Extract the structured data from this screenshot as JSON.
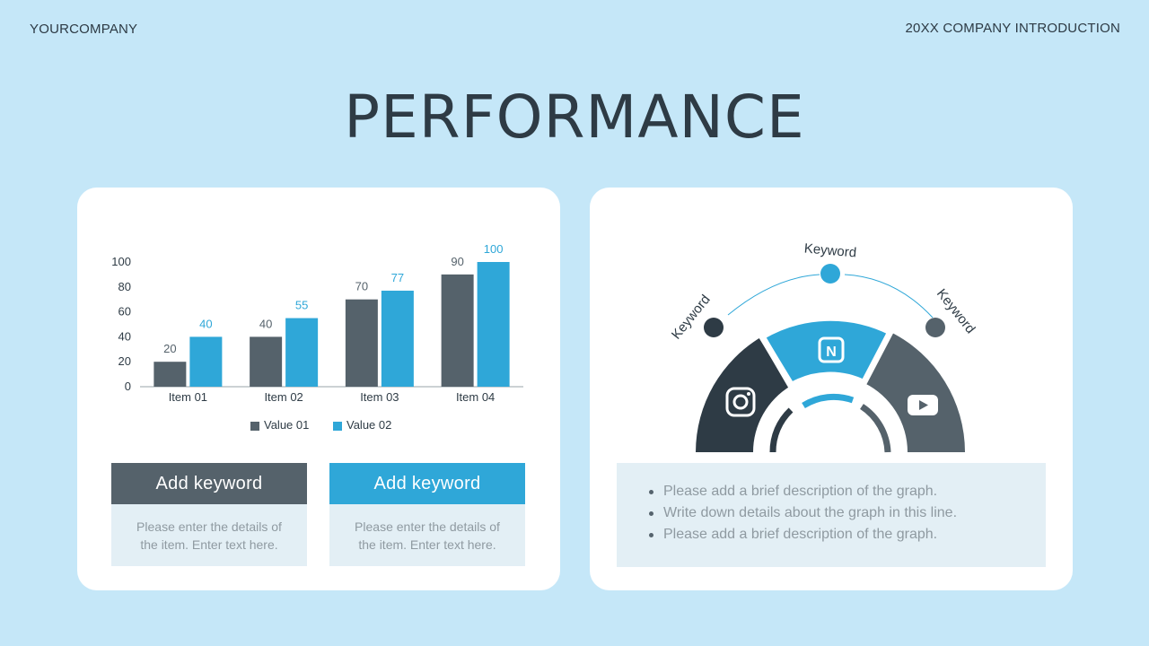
{
  "header": {
    "company": "YOURCOMPANY",
    "subtitle": "20XX COMPANY INTRODUCTION"
  },
  "title": "PERFORMANCE",
  "chart_data": {
    "type": "bar",
    "categories": [
      "Item 01",
      "Item 02",
      "Item 03",
      "Item 04"
    ],
    "series": [
      {
        "name": "Value 01",
        "values": [
          20,
          40,
          70,
          90
        ],
        "color": "#55626b"
      },
      {
        "name": "Value 02",
        "values": [
          40,
          55,
          77,
          100
        ],
        "color": "#2fa7d8"
      }
    ],
    "yticks": [
      "0",
      "20",
      "40",
      "60",
      "80",
      "100"
    ],
    "ylim": [
      0,
      100
    ],
    "title": "",
    "xlabel": "",
    "ylabel": "",
    "legend": "bottom"
  },
  "keywords": [
    {
      "title": "Add keyword",
      "body": "Please enter the details of the item. Enter text here.",
      "color": "#55626b"
    },
    {
      "title": "Add keyword",
      "body": "Please enter the details of the item. Enter text here.",
      "color": "#2fa7d8"
    }
  ],
  "diagram": {
    "labels": [
      "Keyword",
      "Keyword",
      "Keyword"
    ],
    "segments": [
      {
        "icon": "instagram-icon",
        "color": "#2e3b45"
      },
      {
        "icon": "naver-icon",
        "icon_text": "N",
        "color": "#2fa7d8"
      },
      {
        "icon": "youtube-icon",
        "color": "#55626b"
      }
    ]
  },
  "description": {
    "items": [
      "Please add a brief description of the graph.",
      "Write down details about the graph in this line.",
      "Please add a brief description of the graph."
    ]
  }
}
